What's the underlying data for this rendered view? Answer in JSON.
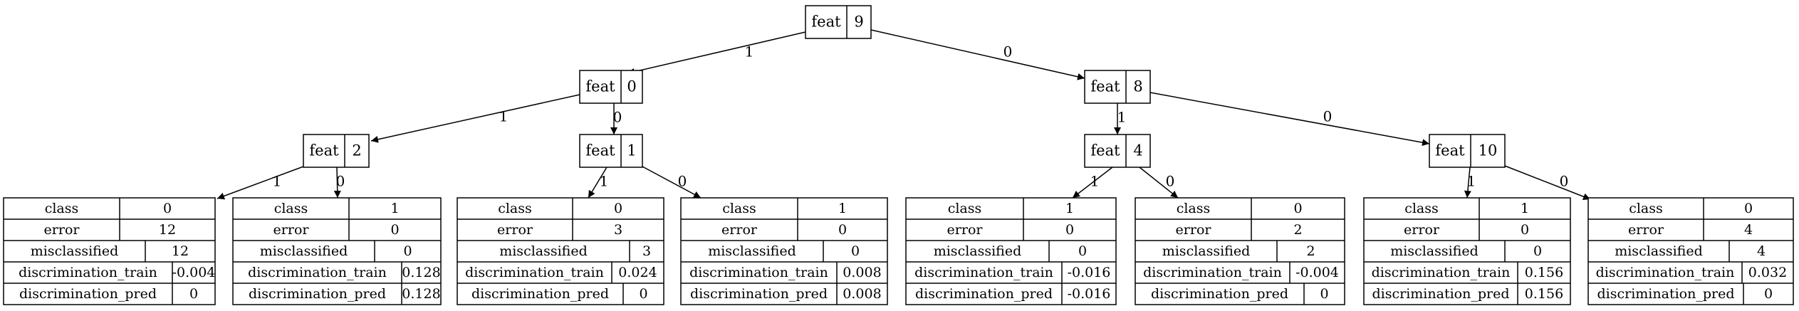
{
  "diagram": {
    "internal_nodes": [
      {
        "id": "n9",
        "label": "feat",
        "value": "9"
      },
      {
        "id": "n0",
        "label": "feat",
        "value": "0"
      },
      {
        "id": "n8",
        "label": "feat",
        "value": "8"
      },
      {
        "id": "n2",
        "label": "feat",
        "value": "2"
      },
      {
        "id": "n1",
        "label": "feat",
        "value": "1"
      },
      {
        "id": "n4",
        "label": "feat",
        "value": "4"
      },
      {
        "id": "n10",
        "label": "feat",
        "value": "10"
      }
    ],
    "leaves": [
      {
        "id": "L1",
        "rows": [
          [
            "class",
            "0"
          ],
          [
            "error",
            "12"
          ],
          [
            "misclassified",
            "12"
          ],
          [
            "discrimination_train",
            "-0.004"
          ],
          [
            "discrimination_pred",
            "0"
          ]
        ]
      },
      {
        "id": "L2",
        "rows": [
          [
            "class",
            "1"
          ],
          [
            "error",
            "0"
          ],
          [
            "misclassified",
            "0"
          ],
          [
            "discrimination_train",
            "0.128"
          ],
          [
            "discrimination_pred",
            "0.128"
          ]
        ]
      },
      {
        "id": "L3",
        "rows": [
          [
            "class",
            "0"
          ],
          [
            "error",
            "3"
          ],
          [
            "misclassified",
            "3"
          ],
          [
            "discrimination_train",
            "0.024"
          ],
          [
            "discrimination_pred",
            "0"
          ]
        ]
      },
      {
        "id": "L4",
        "rows": [
          [
            "class",
            "1"
          ],
          [
            "error",
            "0"
          ],
          [
            "misclassified",
            "0"
          ],
          [
            "discrimination_train",
            "0.008"
          ],
          [
            "discrimination_pred",
            "0.008"
          ]
        ]
      },
      {
        "id": "L5",
        "rows": [
          [
            "class",
            "1"
          ],
          [
            "error",
            "0"
          ],
          [
            "misclassified",
            "0"
          ],
          [
            "discrimination_train",
            "-0.016"
          ],
          [
            "discrimination_pred",
            "-0.016"
          ]
        ]
      },
      {
        "id": "L6",
        "rows": [
          [
            "class",
            "0"
          ],
          [
            "error",
            "2"
          ],
          [
            "misclassified",
            "2"
          ],
          [
            "discrimination_train",
            "-0.004"
          ],
          [
            "discrimination_pred",
            "0"
          ]
        ]
      },
      {
        "id": "L7",
        "rows": [
          [
            "class",
            "1"
          ],
          [
            "error",
            "0"
          ],
          [
            "misclassified",
            "0"
          ],
          [
            "discrimination_train",
            "0.156"
          ],
          [
            "discrimination_pred",
            "0.156"
          ]
        ]
      },
      {
        "id": "L8",
        "rows": [
          [
            "class",
            "0"
          ],
          [
            "error",
            "4"
          ],
          [
            "misclassified",
            "4"
          ],
          [
            "discrimination_train",
            "0.032"
          ],
          [
            "discrimination_pred",
            "0"
          ]
        ]
      }
    ],
    "edges": [
      {
        "from": "n9",
        "to": "n0",
        "label": "1"
      },
      {
        "from": "n9",
        "to": "n8",
        "label": "0"
      },
      {
        "from": "n0",
        "to": "n2",
        "label": "1"
      },
      {
        "from": "n0",
        "to": "n1",
        "label": "0"
      },
      {
        "from": "n8",
        "to": "n4",
        "label": "1"
      },
      {
        "from": "n8",
        "to": "n10",
        "label": "0"
      },
      {
        "from": "n2",
        "to": "L1",
        "label": "1"
      },
      {
        "from": "n2",
        "to": "L2",
        "label": "0"
      },
      {
        "from": "n1",
        "to": "L3",
        "label": "1"
      },
      {
        "from": "n1",
        "to": "L4",
        "label": "0"
      },
      {
        "from": "n4",
        "to": "L5",
        "label": "1"
      },
      {
        "from": "n4",
        "to": "L6",
        "label": "0"
      },
      {
        "from": "n10",
        "to": "L7",
        "label": "1"
      },
      {
        "from": "n10",
        "to": "L8",
        "label": "0"
      }
    ]
  }
}
